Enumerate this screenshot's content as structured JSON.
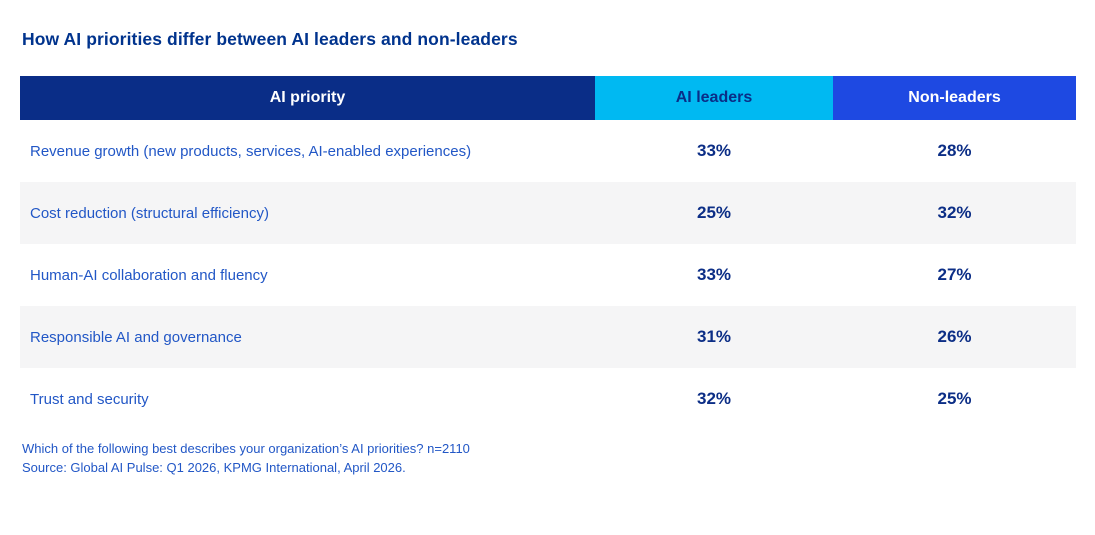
{
  "page": {
    "title": "How AI priorities differ between AI leaders and non-leaders"
  },
  "table": {
    "columns": [
      {
        "label": "AI priority"
      },
      {
        "label": "AI leaders"
      },
      {
        "label": "Non-leaders"
      }
    ],
    "rows": [
      {
        "priority": "Revenue growth (new products, services, AI-enabled experiences)",
        "ai_leaders": "33%",
        "non_leaders": "28%"
      },
      {
        "priority": "Cost reduction (structural efficiency)",
        "ai_leaders": "25%",
        "non_leaders": "32%"
      },
      {
        "priority": "Human-AI collaboration and fluency",
        "ai_leaders": "33%",
        "non_leaders": "27%"
      },
      {
        "priority": "Responsible AI and governance",
        "ai_leaders": "31%",
        "non_leaders": "26%"
      },
      {
        "priority": "Trust and security",
        "ai_leaders": "32%",
        "non_leaders": "25%"
      }
    ]
  },
  "footer": {
    "question": "Which of the following best describes your organization’s AI priorities? n=2110",
    "source": "Source: Global AI Pulse: Q1 2026, KPMG International, April 2026."
  },
  "colors": {
    "title_text": "#00338d",
    "header_priority_bg": "#0a2d87",
    "header_leaders_bg": "#00b9f2",
    "header_nonleaders_bg": "#1e49e2",
    "header_leaders_text": "#0a2d87",
    "header_text": "#ffffff",
    "row_label_text": "#2257c6",
    "value_text": "#0c2e86",
    "row_alt_bg": "#f5f5f6",
    "footnote_text": "#2257c6"
  },
  "chart_data": {
    "type": "table",
    "title": "How AI priorities differ between AI leaders and non-leaders",
    "columns": [
      "AI priority",
      "AI leaders",
      "Non-leaders"
    ],
    "categories": [
      "Revenue growth (new products, services, AI-enabled experiences)",
      "Cost reduction (structural efficiency)",
      "Human-AI collaboration and fluency",
      "Responsible AI and governance",
      "Trust and security"
    ],
    "series": [
      {
        "name": "AI leaders",
        "values": [
          33,
          25,
          33,
          31,
          32
        ]
      },
      {
        "name": "Non-leaders",
        "values": [
          28,
          32,
          27,
          26,
          25
        ]
      }
    ],
    "unit": "%",
    "annotations": [
      "Which of the following best describes your organization’s AI priorities? n=2110",
      "Source: Global AI Pulse: Q1 2026, KPMG International, April 2026."
    ]
  }
}
